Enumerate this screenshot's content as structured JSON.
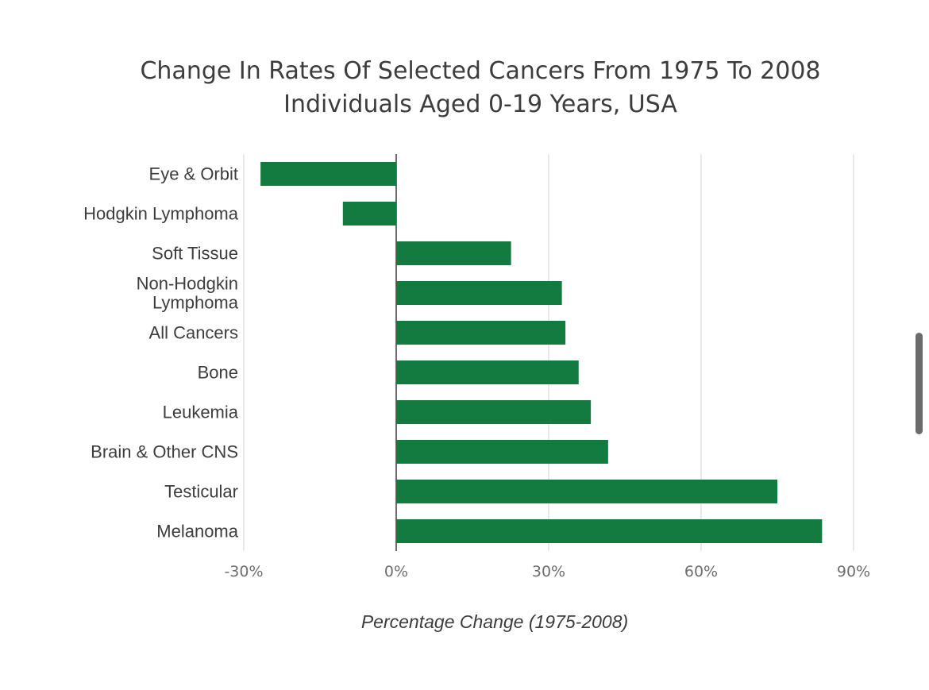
{
  "chart_data": {
    "type": "bar",
    "orientation": "horizontal",
    "title": "Change In Rates Of Selected Cancers From 1975 To 2008",
    "subtitle": "Individuals Aged 0-19 Years, USA",
    "xlabel": "Percentage Change (1975-2008)",
    "ylabel": "",
    "categories": [
      [
        "Eye & Orbit"
      ],
      [
        "Hodgkin Lymphoma"
      ],
      [
        "Soft Tissue"
      ],
      [
        "Non-Hodgkin",
        "Lymphoma"
      ],
      [
        "All Cancers"
      ],
      [
        "Bone"
      ],
      [
        "Leukemia"
      ],
      [
        "Brain & Other CNS"
      ],
      [
        "Testicular"
      ],
      [
        "Melanoma"
      ]
    ],
    "values": [
      -26.7,
      -10.5,
      22.6,
      32.6,
      33.3,
      35.9,
      38.3,
      41.7,
      75,
      83.8
    ],
    "xlim": [
      -30,
      90
    ],
    "xticks": [
      -30,
      0,
      30,
      60,
      90
    ],
    "xtick_labels": [
      "-30%",
      "0%",
      "30%",
      "60%",
      "90%"
    ],
    "bar_color": "#137a40",
    "grid": true
  }
}
